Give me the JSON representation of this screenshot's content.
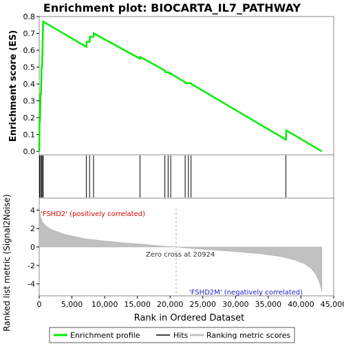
{
  "chart_data": {
    "type": "line",
    "title": "Enrichment plot: BIOCARTA_IL7_PATHWAY",
    "top_panel": {
      "ylabel": "Enrichment score (ES)",
      "ylim": [
        -0.02,
        0.8
      ],
      "yticks": [
        "0.0",
        "0.1",
        "0.2",
        "0.3",
        "0.4",
        "0.5",
        "0.6",
        "0.7",
        "0.8"
      ],
      "ytick_values": [
        0,
        0.1,
        0.2,
        0.3,
        0.4,
        0.5,
        0.6,
        0.7,
        0.8
      ],
      "series": [
        {
          "name": "Enrichment profile",
          "color": "#00ee00",
          "x": [
            0,
            60,
            120,
            200,
            280,
            360,
            440,
            520,
            600,
            7200,
            7250,
            7700,
            7750,
            8300,
            8350,
            15400,
            15450,
            19200,
            19250,
            19700,
            19750,
            20100,
            20150,
            22300,
            22350,
            22800,
            22850,
            23200,
            23250,
            37700,
            37750,
            43200
          ],
          "y": [
            0.0,
            0.18,
            0.18,
            0.34,
            0.34,
            0.5,
            0.5,
            0.64,
            0.77,
            0.62,
            0.65,
            0.65,
            0.68,
            0.68,
            0.7,
            0.55,
            0.56,
            0.48,
            0.47,
            0.47,
            0.465,
            0.465,
            0.46,
            0.41,
            0.405,
            0.405,
            0.405,
            0.405,
            0.4,
            0.07,
            0.125,
            0.0
          ]
        }
      ]
    },
    "hits": {
      "name": "Hits",
      "color": "#000000",
      "x": [
        60,
        200,
        360,
        520,
        600,
        7200,
        7700,
        8300,
        15400,
        19200,
        19700,
        20100,
        22300,
        22800,
        23200,
        37700
      ]
    },
    "heatmap_bar": {
      "xmax": 43200,
      "segments": [
        {
          "x0": 0,
          "x1": 1500,
          "color": "#dd0000"
        },
        {
          "x0": 1500,
          "x1": 7000,
          "color": "#f03c3c"
        },
        {
          "x0": 7000,
          "x1": 10500,
          "color": "#f46060"
        },
        {
          "x0": 10500,
          "x1": 15800,
          "color": "#f88a8a"
        },
        {
          "x0": 15800,
          "x1": 19200,
          "color": "#fbbad6"
        },
        {
          "x0": 19200,
          "x1": 21000,
          "color": "#fad2e8"
        },
        {
          "x0": 21000,
          "x1": 26500,
          "color": "#dcdcf6"
        },
        {
          "x0": 26500,
          "x1": 32400,
          "color": "#c8c8f4"
        },
        {
          "x0": 32400,
          "x1": 35300,
          "color": "#8a8af0"
        },
        {
          "x0": 35300,
          "x1": 41400,
          "color": "#5a5ae0"
        },
        {
          "x0": 41400,
          "x1": 43200,
          "color": "#2020c8"
        }
      ]
    },
    "bottom_panel": {
      "ylabel": "Ranked list metric (Signal2Noise)",
      "xlabel": "Rank in Ordered Dataset",
      "xlim": [
        0,
        45000
      ],
      "ylim": [
        -5.3,
        5.3
      ],
      "xticks": [
        "0",
        "5,000",
        "10,000",
        "15,000",
        "20,000",
        "25,000",
        "30,000",
        "35,000",
        "40,000",
        "45,000"
      ],
      "xtick_values": [
        0,
        5000,
        10000,
        15000,
        20000,
        25000,
        30000,
        35000,
        40000,
        45000
      ],
      "yticks": [
        "4",
        "2",
        "0",
        "-2",
        "-4"
      ],
      "ytick_values": [
        4,
        2,
        0,
        -2,
        -4
      ],
      "metric_series": {
        "name": "Ranking metric scores",
        "color": "#c0c0c0",
        "x": [
          0,
          200,
          500,
          1000,
          2000,
          4000,
          7000,
          10000,
          13000,
          16000,
          18000,
          20924,
          23000,
          26000,
          30000,
          34000,
          37000,
          39000,
          40500,
          41500,
          42300,
          42800,
          43200
        ],
        "y": [
          4.6,
          3.3,
          2.7,
          2.3,
          1.85,
          1.35,
          0.9,
          0.65,
          0.45,
          0.3,
          0.15,
          0.0,
          -0.15,
          -0.3,
          -0.5,
          -0.75,
          -1.05,
          -1.4,
          -1.8,
          -2.3,
          -3.0,
          -3.8,
          -4.9
        ]
      },
      "zero_cross_x": 20924,
      "annotations": {
        "positive": "'FSHD2' (positively correlated)",
        "negative": "'FSHD2M' (negatively correlated)",
        "zero_cross": "Zero cross at 20924"
      }
    },
    "legend": {
      "items": [
        {
          "label": "Enrichment profile",
          "color": "#00ee00"
        },
        {
          "label": "Hits",
          "color": "#000000"
        },
        {
          "label": "Ranking metric scores",
          "color": "#c0c0c0"
        }
      ]
    }
  }
}
